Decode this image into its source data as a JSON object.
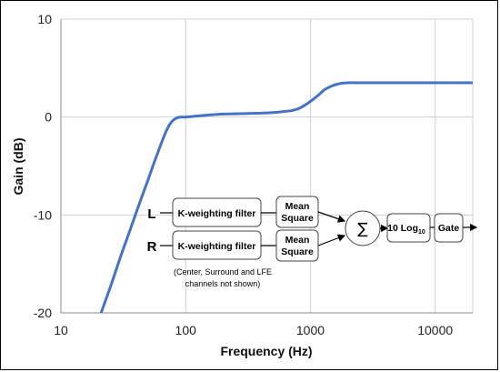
{
  "chart_data": {
    "type": "line",
    "title": "",
    "xlabel": "Frequency (Hz)",
    "ylabel": "Gain (dB)",
    "x_scale": "log",
    "xlim": [
      10,
      20000
    ],
    "ylim": [
      -20,
      10
    ],
    "x_ticks": [
      10,
      100,
      1000,
      10000
    ],
    "x_tick_labels": [
      "10",
      "100",
      "1000",
      "10000"
    ],
    "y_ticks": [
      10,
      0,
      -10,
      -20
    ],
    "y_tick_labels": [
      "10",
      "0",
      "-10",
      "-20"
    ],
    "grid": true,
    "series": [
      {
        "color": "#4472c4",
        "x": [
          21,
          25,
          30,
          35,
          40,
          45,
          50,
          55,
          60,
          65,
          70,
          75,
          80,
          85,
          90,
          100,
          150,
          200,
          300,
          400,
          500,
          600,
          700,
          800,
          900,
          1000,
          1100,
          1200,
          1300,
          1500,
          1700,
          2000,
          2500,
          3000,
          5000,
          10000,
          20000
        ],
        "y": [
          -20.0,
          -17.3,
          -14.3,
          -11.9,
          -9.8,
          -8.0,
          -6.4,
          -4.9,
          -3.6,
          -2.4,
          -1.4,
          -0.7,
          -0.3,
          -0.1,
          0.0,
          0.0,
          0.2,
          0.3,
          0.35,
          0.4,
          0.45,
          0.55,
          0.65,
          0.85,
          1.2,
          1.6,
          2.0,
          2.4,
          2.8,
          3.2,
          3.4,
          3.5,
          3.5,
          3.5,
          3.5,
          3.5,
          3.5
        ]
      }
    ]
  },
  "diagram": {
    "channel_left": "L",
    "channel_right": "R",
    "filter_label": "K-weighting filter",
    "mean_line1": "Mean",
    "mean_line2": "Square",
    "sum_symbol": "∑",
    "log_label_main": "10 Log",
    "log_label_sub": "10",
    "gate_label": "Gate",
    "note_line1": "(Center, Surround and LFE",
    "note_line2": "channels not shown)"
  }
}
